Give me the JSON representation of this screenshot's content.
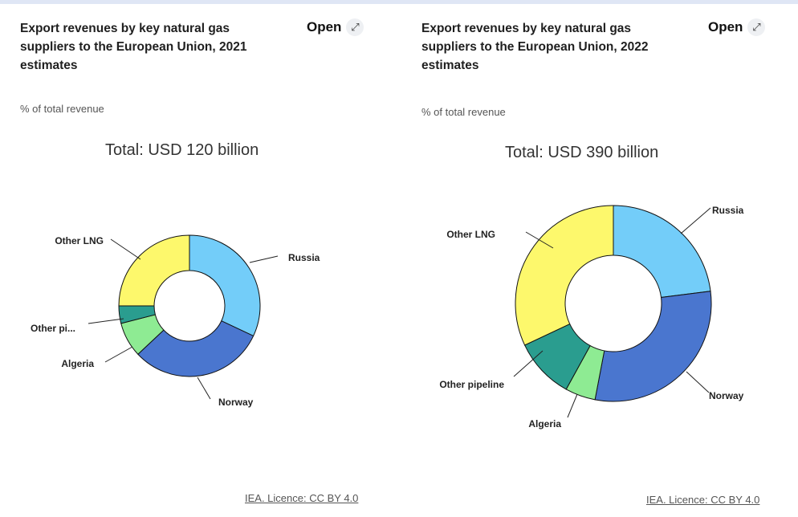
{
  "charts": [
    {
      "title": "Export revenues by key natural gas suppliers to the European Union, 2021 estimates",
      "open_label": "Open",
      "unit_label": "% of total revenue",
      "credit": "IEA. Licence: CC BY 4.0"
    },
    {
      "title": "Export revenues by key natural gas suppliers to the European Union, 2022 estimates",
      "open_label": "Open",
      "unit_label": "% of total revenue",
      "credit": "IEA. Licence: CC BY 4.0"
    }
  ],
  "chart_data": [
    {
      "type": "pie",
      "subtitle": "Total: USD 120 billion",
      "categories": [
        "Russia",
        "Norway",
        "Algeria",
        "Other pi...",
        "Other LNG"
      ],
      "values": [
        32,
        31,
        8,
        4,
        25
      ],
      "colors": [
        "#73cdf9",
        "#4a76cf",
        "#8eeb93",
        "#2a9d8f",
        "#fdf86c"
      ],
      "unit": "% of total revenue"
    },
    {
      "type": "pie",
      "subtitle": "Total: USD 390 billion",
      "categories": [
        "Russia",
        "Norway",
        "Algeria",
        "Other pipeline",
        "Other LNG"
      ],
      "values": [
        23,
        30,
        5,
        10,
        32
      ],
      "colors": [
        "#73cdf9",
        "#4a76cf",
        "#8eeb93",
        "#2a9d8f",
        "#fdf86c"
      ],
      "unit": "% of total revenue"
    }
  ]
}
